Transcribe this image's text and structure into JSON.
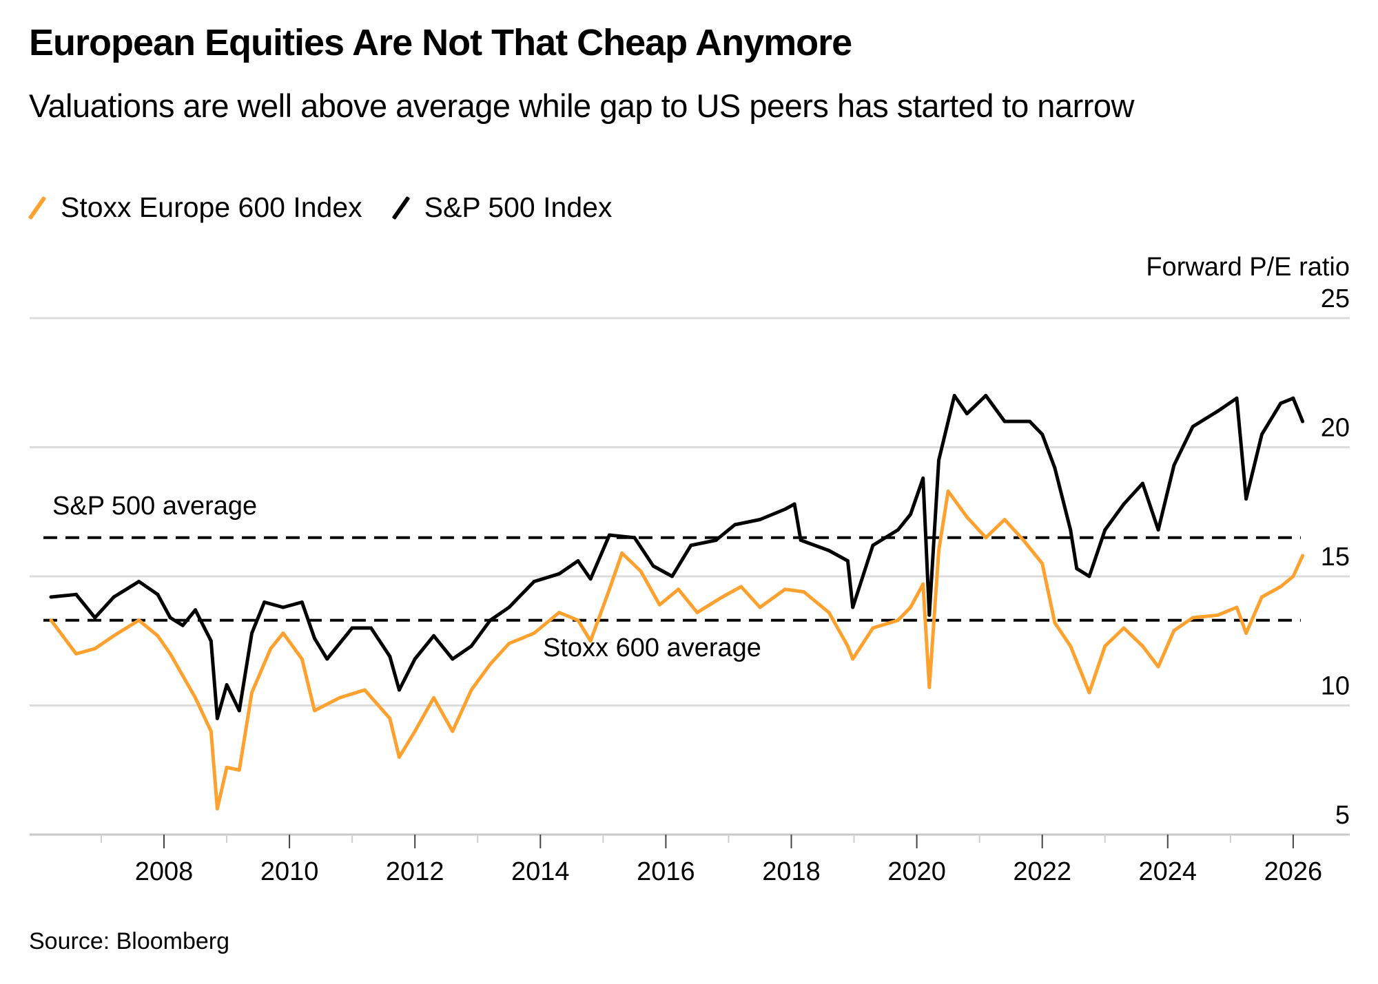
{
  "header": {
    "title": "European Equities Are Not That Cheap Anymore",
    "subtitle": "Valuations are well above average while gap to US peers has started to narrow"
  },
  "legend": [
    {
      "label": "Stoxx Europe 600 Index",
      "color": "#ffa12e"
    },
    {
      "label": "S&P 500 Index",
      "color": "#000000"
    }
  ],
  "footer": {
    "source": "Source: Bloomberg"
  },
  "chart_data": {
    "type": "line",
    "title": "European Equities Are Not That Cheap Anymore",
    "subtitle": "Valuations are well above average while gap to US peers has started to narrow",
    "xlabel": "",
    "ylabel": "Forward P/E ratio",
    "xlim": [
      2006.1,
      2026.9
    ],
    "ylim": [
      5,
      25
    ],
    "x_ticks": [
      2008,
      2010,
      2012,
      2014,
      2016,
      2018,
      2020,
      2022,
      2024,
      2026
    ],
    "x_tick_labels": [
      "2008",
      "2010",
      "2012",
      "2014",
      "2016",
      "2018",
      "2020",
      "2022",
      "2024",
      "2026"
    ],
    "y_ticks": [
      5,
      10,
      15,
      20,
      25
    ],
    "y_tick_labels": [
      "5",
      "10",
      "15",
      "20",
      "25"
    ],
    "y_axis_side": "right",
    "grid": true,
    "legend_position": "top-left",
    "series": [
      {
        "name": "Stoxx Europe 600 Index",
        "color": "#ffa12e",
        "x": [
          2006.2,
          2006.6,
          2006.9,
          2007.2,
          2007.6,
          2007.9,
          2008.1,
          2008.5,
          2008.75,
          2008.85,
          2009.0,
          2009.2,
          2009.4,
          2009.7,
          2009.9,
          2010.2,
          2010.4,
          2010.8,
          2011.2,
          2011.6,
          2011.75,
          2012.0,
          2012.3,
          2012.6,
          2012.9,
          2013.2,
          2013.5,
          2013.9,
          2014.3,
          2014.6,
          2014.8,
          2015.1,
          2015.3,
          2015.6,
          2015.9,
          2016.2,
          2016.5,
          2016.9,
          2017.2,
          2017.5,
          2017.9,
          2018.2,
          2018.6,
          2018.9,
          2018.98,
          2019.3,
          2019.7,
          2019.9,
          2020.1,
          2020.2,
          2020.35,
          2020.5,
          2020.8,
          2021.1,
          2021.4,
          2021.7,
          2022.0,
          2022.2,
          2022.45,
          2022.75,
          2023.0,
          2023.3,
          2023.6,
          2023.85,
          2024.1,
          2024.4,
          2024.8,
          2025.1,
          2025.25,
          2025.5,
          2025.8,
          2026.0,
          2026.15
        ],
        "values": [
          13.3,
          12.0,
          12.2,
          12.7,
          13.3,
          12.7,
          12.0,
          10.3,
          9.0,
          6.0,
          7.6,
          7.5,
          10.5,
          12.2,
          12.8,
          11.8,
          9.8,
          10.3,
          10.6,
          9.5,
          8.0,
          9.0,
          10.3,
          9.0,
          10.6,
          11.6,
          12.4,
          12.8,
          13.6,
          13.3,
          12.5,
          14.5,
          15.9,
          15.2,
          13.9,
          14.5,
          13.6,
          14.2,
          14.6,
          13.8,
          14.5,
          14.4,
          13.6,
          12.3,
          11.8,
          13.0,
          13.3,
          13.8,
          14.7,
          10.7,
          16.0,
          18.3,
          17.3,
          16.5,
          17.2,
          16.4,
          15.5,
          13.2,
          12.3,
          10.5,
          12.3,
          13.0,
          12.3,
          11.5,
          12.9,
          13.4,
          13.5,
          13.8,
          12.8,
          14.2,
          14.6,
          15.0,
          15.8
        ]
      },
      {
        "name": "S&P 500 Index",
        "color": "#000000",
        "x": [
          2006.2,
          2006.6,
          2006.9,
          2007.2,
          2007.6,
          2007.9,
          2008.1,
          2008.3,
          2008.5,
          2008.75,
          2008.85,
          2009.0,
          2009.2,
          2009.4,
          2009.6,
          2009.9,
          2010.2,
          2010.4,
          2010.6,
          2011.0,
          2011.3,
          2011.6,
          2011.75,
          2012.0,
          2012.3,
          2012.6,
          2012.9,
          2013.2,
          2013.5,
          2013.9,
          2014.3,
          2014.6,
          2014.8,
          2015.1,
          2015.5,
          2015.8,
          2016.1,
          2016.4,
          2016.8,
          2017.1,
          2017.5,
          2017.9,
          2018.05,
          2018.15,
          2018.6,
          2018.9,
          2018.98,
          2019.3,
          2019.7,
          2019.9,
          2020.1,
          2020.2,
          2020.35,
          2020.6,
          2020.8,
          2021.1,
          2021.4,
          2021.8,
          2022.0,
          2022.2,
          2022.45,
          2022.55,
          2022.75,
          2023.0,
          2023.3,
          2023.6,
          2023.85,
          2024.1,
          2024.4,
          2024.8,
          2025.1,
          2025.25,
          2025.5,
          2025.8,
          2026.0,
          2026.15
        ],
        "values": [
          14.2,
          14.3,
          13.4,
          14.2,
          14.8,
          14.3,
          13.4,
          13.1,
          13.7,
          12.5,
          9.5,
          10.8,
          9.8,
          12.8,
          14.0,
          13.8,
          14.0,
          12.6,
          11.8,
          13.0,
          13.0,
          11.9,
          10.6,
          11.8,
          12.7,
          11.8,
          12.3,
          13.3,
          13.8,
          14.8,
          15.1,
          15.6,
          14.9,
          16.6,
          16.5,
          15.4,
          15.0,
          16.2,
          16.4,
          17.0,
          17.2,
          17.6,
          17.8,
          16.4,
          16.0,
          15.6,
          13.8,
          16.2,
          16.8,
          17.4,
          18.8,
          13.5,
          19.5,
          22.0,
          21.3,
          22.0,
          21.0,
          21.0,
          20.5,
          19.2,
          16.8,
          15.3,
          15.0,
          16.8,
          17.8,
          18.6,
          16.8,
          19.3,
          20.8,
          21.4,
          21.9,
          18.0,
          20.5,
          21.7,
          21.9,
          21.0
        ]
      }
    ],
    "reference_lines": [
      {
        "label": "S&P 500 average",
        "value": 16.5
      },
      {
        "label": "Stoxx 600 average",
        "value": 13.3
      }
    ],
    "annotations": [
      "S&P 500 average",
      "Stoxx 600 average"
    ]
  }
}
